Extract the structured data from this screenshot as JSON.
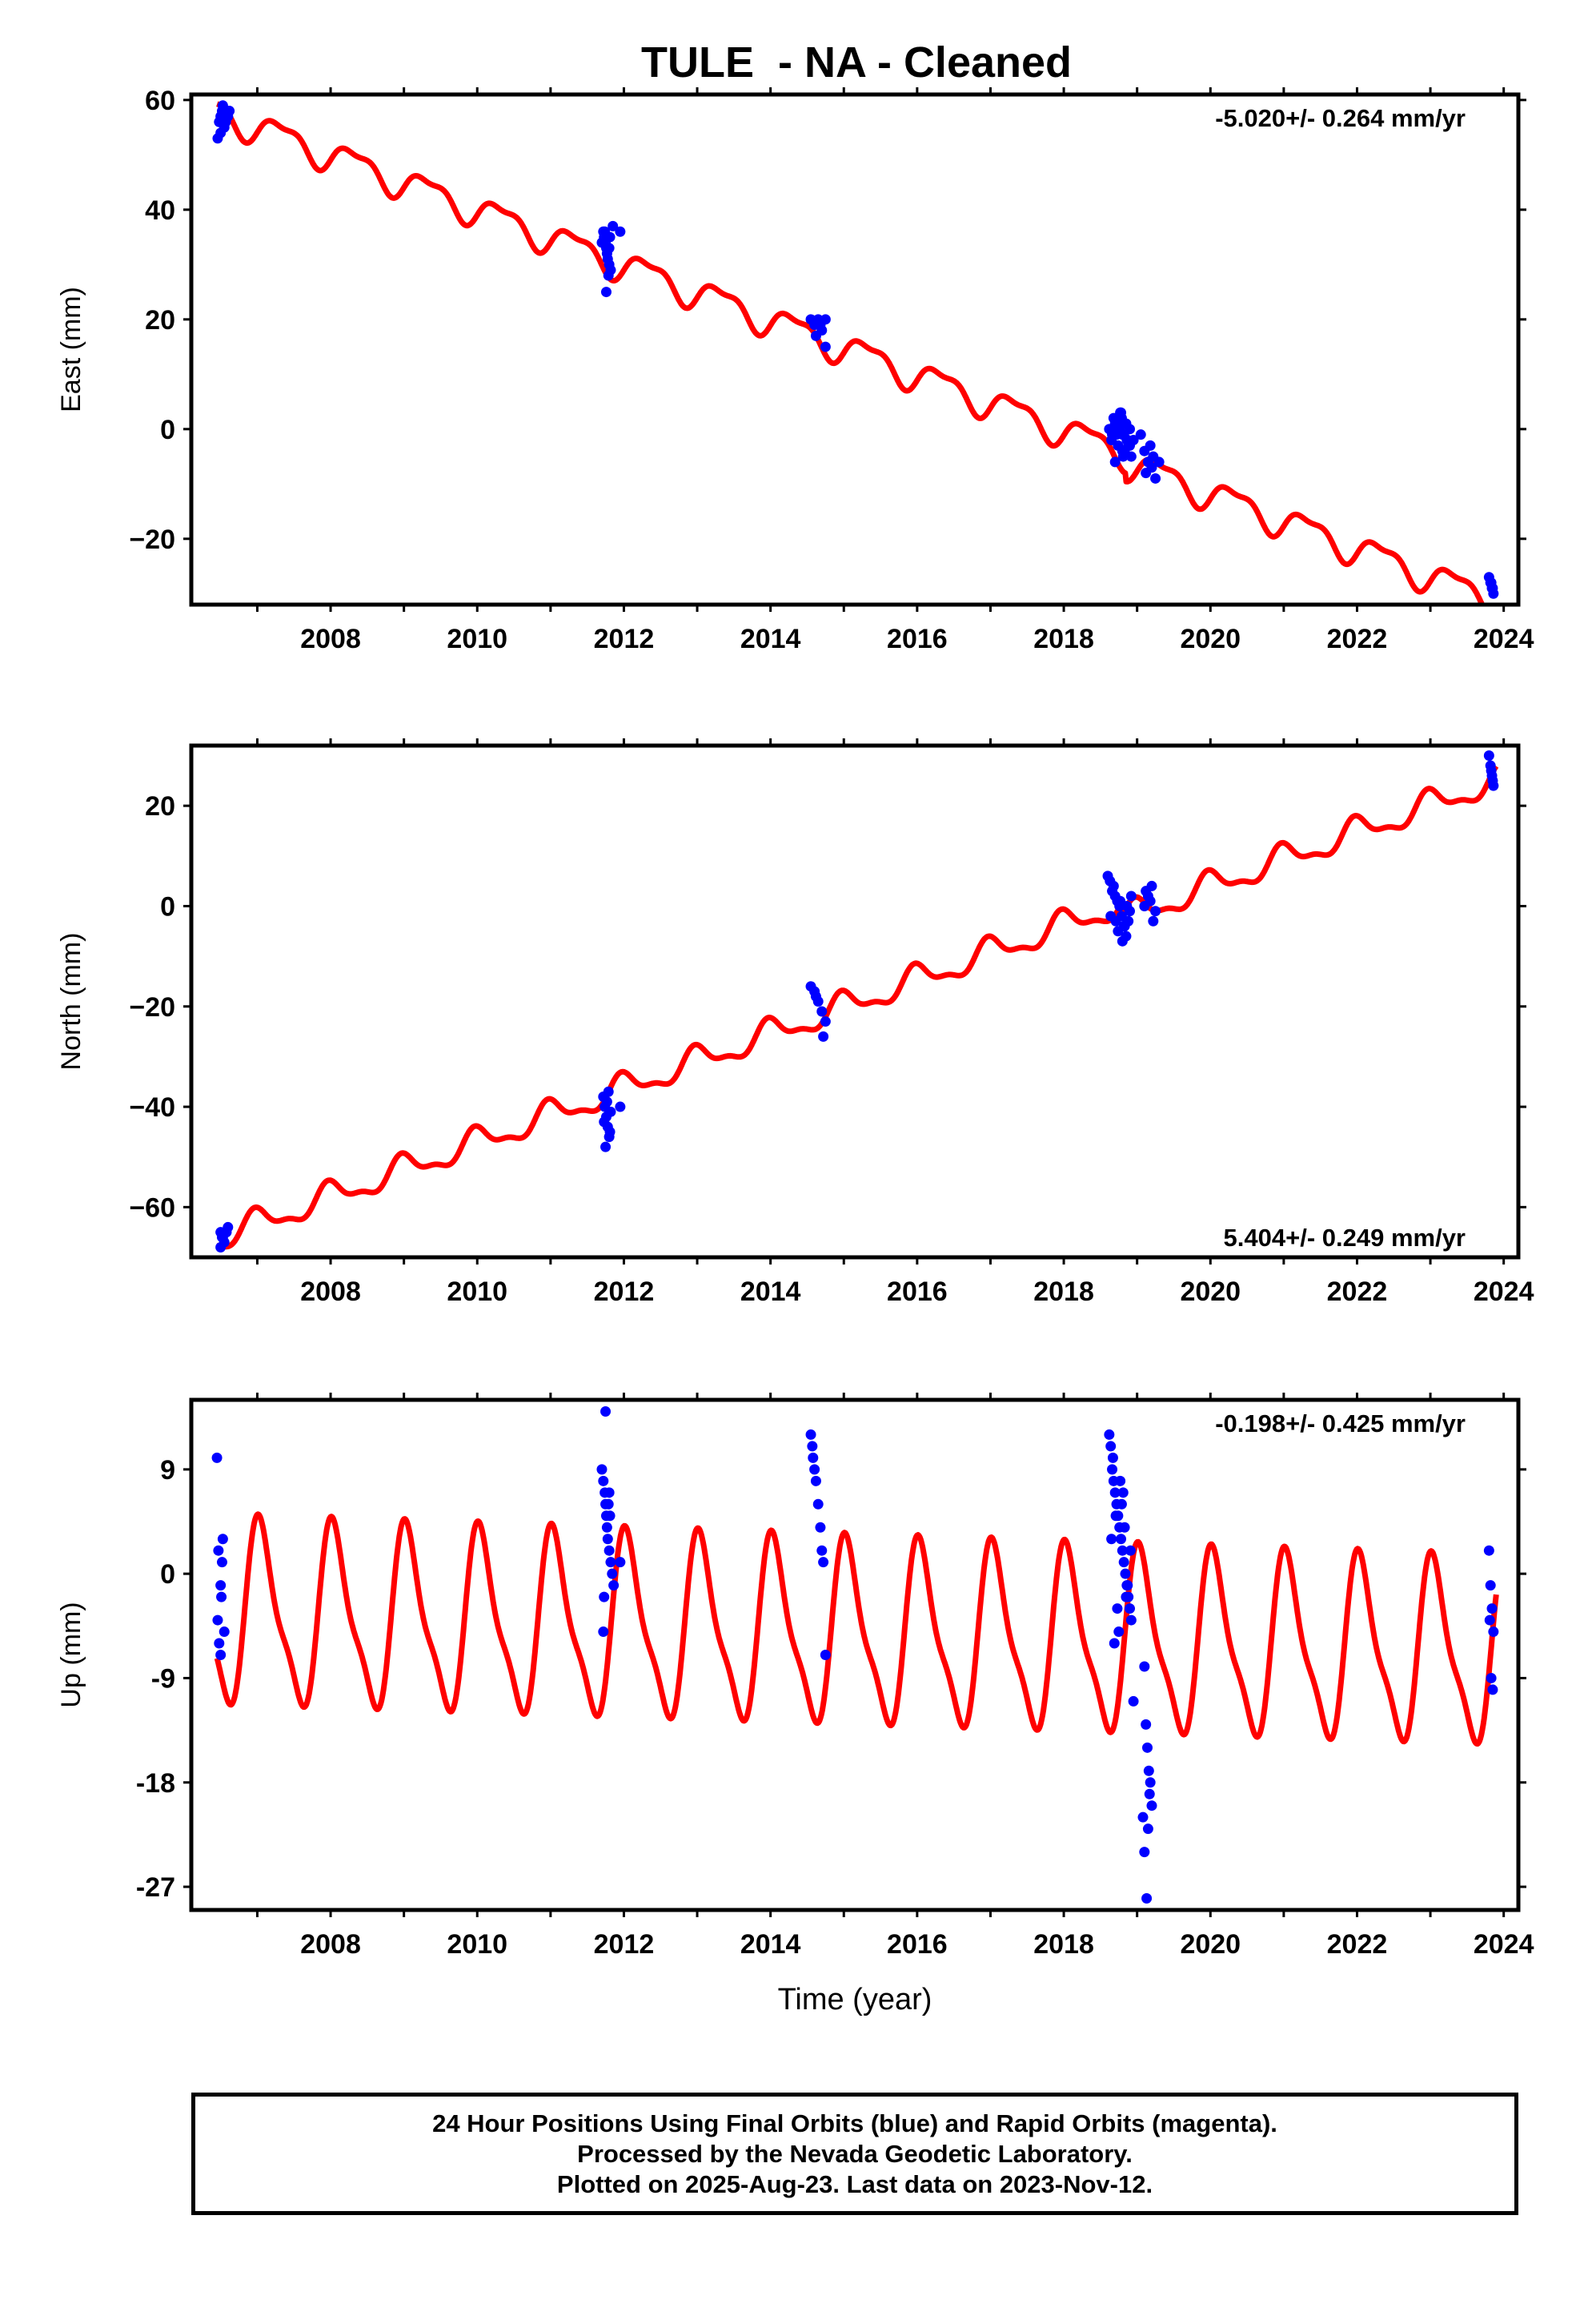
{
  "title": "TULE  - NA - Cleaned",
  "colors": {
    "model": "#ff0000",
    "final_orbits": "#0000ff",
    "axes": "#000000",
    "background": "#ffffff"
  },
  "chart_data": [
    {
      "type": "scatter",
      "panel": "east",
      "ylabel": "East (mm)",
      "xlim": [
        2006.1,
        2024.2
      ],
      "ylim": [
        -32,
        61
      ],
      "xticks": [
        2008,
        2010,
        2012,
        2014,
        2016,
        2018,
        2020,
        2022,
        2024
      ],
      "yticks": [
        -20,
        0,
        20,
        40,
        60
      ],
      "tick_labels": [
        "−20",
        "0",
        "20",
        "40",
        "60"
      ],
      "rate_label": "-5.020+/- 0.264 mm/yr",
      "rate_position": "top-right",
      "model": {
        "name": "model fit",
        "color": "#ff0000",
        "trend": {
          "x0": 2006.5,
          "y0": 57.5,
          "slope": -5.02
        },
        "annual_amplitude": 2.6,
        "annual_phase": 5.8,
        "semiannual_amplitude": 1.0,
        "semiannual_phase": 0.3,
        "offsets": [
          {
            "x": 2018.85,
            "y": -1.5
          }
        ]
      },
      "points": {
        "x": [
          2006.48,
          2006.5,
          2006.52,
          2006.55,
          2006.58,
          2006.6,
          2006.5,
          2006.53,
          2006.57,
          2006.6,
          2006.62,
          2006.46,
          2011.72,
          2011.73,
          2011.75,
          2011.76,
          2011.78,
          2011.8,
          2011.82,
          2011.74,
          2011.77,
          2011.79,
          2011.81,
          2011.7,
          2011.85,
          2011.95,
          2011.76,
          2011.8,
          2014.55,
          2014.6,
          2014.65,
          2014.7,
          2014.75,
          2014.62,
          2014.68,
          2014.75,
          2018.62,
          2018.65,
          2018.68,
          2018.7,
          2018.72,
          2018.74,
          2018.76,
          2018.78,
          2018.8,
          2018.82,
          2018.84,
          2018.86,
          2018.88,
          2018.9,
          2018.92,
          2018.95,
          2018.7,
          2018.75,
          2018.8,
          2018.85,
          2018.9,
          2018.66,
          2018.71,
          2018.79,
          2018.83,
          2018.87,
          2018.73,
          2018.81,
          2018.77,
          2019.1,
          2019.15,
          2019.2,
          2019.22,
          2019.25,
          2019.12,
          2019.18,
          2019.05,
          2019.3,
          2023.8,
          2023.82,
          2023.84,
          2023.86,
          2023.83,
          2023.85
        ],
        "y": [
          56,
          57,
          58,
          55,
          57,
          58,
          54,
          59,
          56,
          57,
          58,
          53,
          36,
          35,
          34,
          33,
          31,
          30,
          29,
          36,
          32,
          28,
          35,
          34,
          37,
          36,
          25,
          33,
          20,
          19,
          20,
          18,
          15,
          17,
          19,
          20,
          0,
          -2,
          2,
          1,
          -1,
          -3,
          0,
          3,
          -4,
          -1,
          1,
          -2,
          -3,
          0,
          -5,
          -2,
          -6,
          2,
          -1,
          1,
          -3,
          -1,
          0,
          2,
          -4,
          -2,
          1,
          -5,
          3,
          -4,
          -6,
          -7,
          -5,
          -9,
          -8,
          -3,
          -1,
          -6,
          -27,
          -28,
          -29,
          -30,
          -28,
          -29
        ]
      }
    },
    {
      "type": "scatter",
      "panel": "north",
      "ylabel": "North (mm)",
      "xlim": [
        2006.1,
        2024.2
      ],
      "ylim": [
        -70,
        32
      ],
      "xticks": [
        2008,
        2010,
        2012,
        2014,
        2016,
        2018,
        2020,
        2022,
        2024
      ],
      "yticks": [
        -60,
        -40,
        -20,
        0,
        20
      ],
      "tick_labels": [
        "−60",
        "−40",
        "−20",
        "0",
        "20"
      ],
      "rate_label": "5.404+/- 0.249 mm/yr",
      "rate_position": "bottom-right",
      "model": {
        "name": "model fit",
        "color": "#ff0000",
        "trend": {
          "x0": 2006.5,
          "y0": -66,
          "slope": 5.404
        },
        "annual_amplitude": 2.5,
        "annual_phase": 1.6,
        "semiannual_amplitude": 1.0,
        "semiannual_phase": 2.3,
        "offsets": [
          {
            "x": 2018.8,
            "y": -3.0
          }
        ]
      },
      "points": {
        "x": [
          2006.5,
          2006.52,
          2006.55,
          2006.58,
          2006.5,
          2006.6,
          2006.53,
          2011.72,
          2011.74,
          2011.76,
          2011.78,
          2011.8,
          2011.82,
          2011.75,
          2011.77,
          2011.79,
          2011.95,
          2011.73,
          2011.81,
          2014.55,
          2014.6,
          2014.65,
          2014.7,
          2014.75,
          2014.62,
          2014.72,
          2018.6,
          2018.63,
          2018.66,
          2018.7,
          2018.73,
          2018.76,
          2018.79,
          2018.82,
          2018.85,
          2018.88,
          2018.9,
          2018.68,
          2018.74,
          2018.8,
          2018.86,
          2018.92,
          2018.64,
          2018.71,
          2018.77,
          2018.83,
          2019.1,
          2019.15,
          2019.2,
          2019.25,
          2019.12,
          2019.22,
          2019.18,
          2023.8,
          2023.82,
          2023.84,
          2023.86,
          2023.83,
          2023.85
        ],
        "y": [
          -65,
          -66,
          -67,
          -65,
          -68,
          -64,
          -66,
          -38,
          -40,
          -42,
          -44,
          -46,
          -41,
          -48,
          -39,
          -37,
          -40,
          -43,
          -45,
          -16,
          -17,
          -19,
          -21,
          -23,
          -18,
          -26,
          6,
          5,
          3,
          2,
          1,
          0,
          -2,
          -4,
          -6,
          -3,
          -1,
          4,
          -5,
          -7,
          0,
          2,
          -2,
          -3,
          1,
          -4,
          0,
          2,
          4,
          -1,
          3,
          -3,
          1,
          30,
          28,
          26,
          24,
          27,
          25
        ]
      }
    },
    {
      "type": "scatter",
      "panel": "up",
      "ylabel": "Up (mm)",
      "xlabel": "Time (year)",
      "xlim": [
        2006.1,
        2024.2
      ],
      "ylim": [
        -29,
        15
      ],
      "xticks": [
        2008,
        2010,
        2012,
        2014,
        2016,
        2018,
        2020,
        2022,
        2024
      ],
      "yticks": [
        -27,
        -18,
        -9,
        0,
        9
      ],
      "tick_labels": [
        "-27",
        "-18",
        "-9",
        "0",
        "9"
      ],
      "rate_label": "-0.198+/- 0.425 mm/yr",
      "rate_position": "top-right",
      "model": {
        "name": "model fit",
        "color": "#ff0000",
        "trend": {
          "x0": 2006.5,
          "y0": -3.6,
          "slope": -0.198
        },
        "annual_amplitude": 7.4,
        "annual_phase": 1.2,
        "semiannual_amplitude": 2.1,
        "semiannual_phase": 2.0,
        "offsets": []
      },
      "points": {
        "x": [
          2006.45,
          2006.47,
          2006.5,
          2006.52,
          2006.55,
          2006.48,
          2006.5,
          2006.53,
          2006.46,
          2006.51,
          2011.7,
          2011.72,
          2011.74,
          2011.75,
          2011.76,
          2011.77,
          2011.78,
          2011.8,
          2011.82,
          2011.84,
          2011.86,
          2011.73,
          2011.79,
          2011.81,
          2011.75,
          2011.95,
          2011.72,
          2011.8,
          2014.55,
          2014.58,
          2014.6,
          2014.62,
          2014.65,
          2014.68,
          2014.7,
          2014.72,
          2014.75,
          2014.57,
          2018.62,
          2018.64,
          2018.66,
          2018.68,
          2018.7,
          2018.72,
          2018.74,
          2018.76,
          2018.78,
          2018.8,
          2018.82,
          2018.84,
          2018.86,
          2018.88,
          2018.9,
          2018.92,
          2018.95,
          2018.67,
          2018.71,
          2018.75,
          2018.79,
          2018.83,
          2018.87,
          2018.91,
          2018.65,
          2018.73,
          2018.81,
          2018.69,
          2018.77,
          2018.85,
          2019.1,
          2019.12,
          2019.14,
          2019.16,
          2019.18,
          2019.2,
          2019.15,
          2019.1,
          2019.17,
          2019.13,
          2019.08,
          2023.8,
          2023.82,
          2023.84,
          2023.86,
          2023.83,
          2023.85,
          2023.81
        ],
        "y": [
          10,
          2,
          -1,
          1,
          -5,
          -6,
          -7,
          3,
          -4,
          -2,
          9,
          8,
          7,
          6,
          5,
          4,
          3,
          2,
          1,
          0,
          -1,
          -2,
          6,
          5,
          14,
          1,
          -5,
          7,
          12,
          10,
          9,
          8,
          6,
          4,
          2,
          1,
          -7,
          11,
          12,
          11,
          9,
          8,
          7,
          6,
          5,
          4,
          3,
          2,
          1,
          0,
          -1,
          -2,
          -3,
          -4,
          -11,
          10,
          5,
          -5,
          6,
          4,
          -1,
          2,
          3,
          -3,
          7,
          -6,
          8,
          -2,
          -8,
          -13,
          -15,
          -17,
          -18,
          -20,
          -22,
          -24,
          -19,
          -28,
          -21,
          2,
          -1,
          -3,
          -5,
          -9,
          -10,
          -4
        ]
      }
    }
  ],
  "footer": {
    "line1": "24 Hour Positions Using Final Orbits (blue) and Rapid Orbits (magenta).",
    "line2": "Processed by the Nevada Geodetic Laboratory.",
    "line3": "Plotted on 2025-Aug-23. Last data on 2023-Nov-12."
  }
}
